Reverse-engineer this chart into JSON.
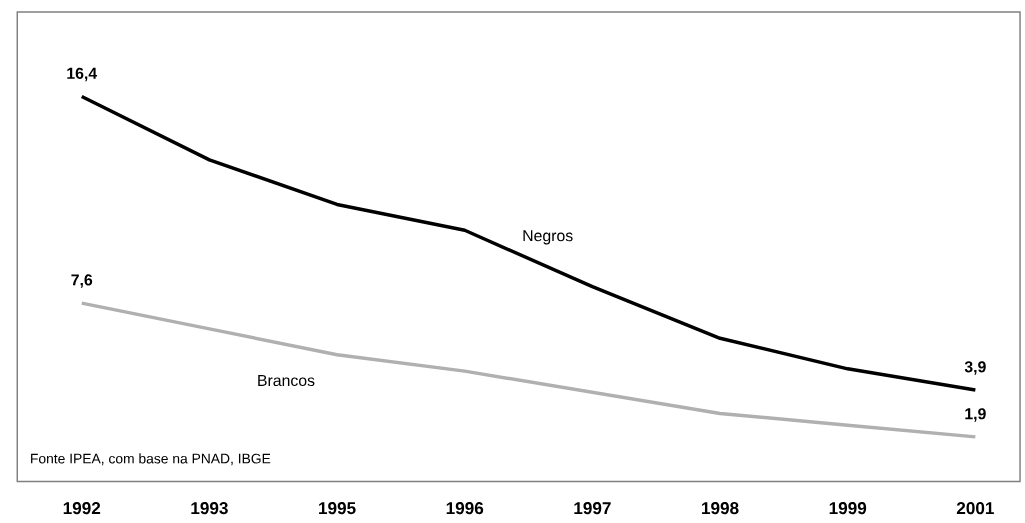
{
  "chart_data": {
    "type": "line",
    "categories": [
      "1992",
      "1993",
      "1995",
      "1996",
      "1997",
      "1998",
      "1999",
      "2001"
    ],
    "ylim": [
      0,
      20
    ],
    "series": [
      {
        "name": "Negros",
        "color": "#000000",
        "values": [
          16.4,
          13.7,
          11.8,
          10.7,
          8.3,
          6.1,
          4.8,
          3.9
        ],
        "value_labels": [
          "16,4",
          null,
          null,
          null,
          null,
          null,
          null,
          "3,9"
        ]
      },
      {
        "name": "Brancos",
        "color": "#b0b0b0",
        "values": [
          7.6,
          6.5,
          5.4,
          4.7,
          3.8,
          2.9,
          2.4,
          1.9
        ],
        "value_labels": [
          "7,6",
          null,
          null,
          null,
          null,
          null,
          null,
          "1,9"
        ]
      }
    ],
    "annotations": [
      "Fonte IPEA, com base na PNAD, IBGE"
    ]
  }
}
